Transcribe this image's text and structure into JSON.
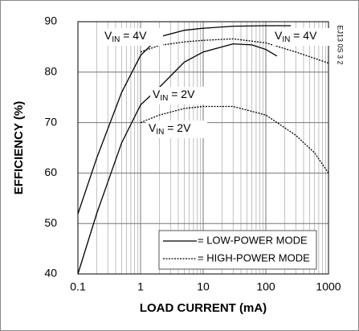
{
  "chart_data": {
    "type": "line",
    "xlabel": "LOAD CURRENT (mA)",
    "ylabel": "EFFICIENCY (%)",
    "figure_code": "EJ13 0S 3 2",
    "xscale": "log",
    "xlim": [
      0.1,
      1000
    ],
    "xticks": [
      0.1,
      1,
      10,
      100,
      1000
    ],
    "ylim": [
      40,
      90
    ],
    "yticks": [
      40,
      50,
      60,
      70,
      80,
      90
    ],
    "grid": true,
    "color": "#000000",
    "series": [
      {
        "name": "= LOW-POWER MODE",
        "dash": "solid",
        "curves": [
          {
            "x": [
              0.1,
              0.2,
              0.5,
              1,
              2,
              5,
              10,
              30,
              100,
              250
            ],
            "values": [
              51.9,
              63,
              76,
              83.3,
              87,
              88.3,
              88.7,
              89.1,
              89.2,
              89.2
            ]
          },
          {
            "x": [
              0.1,
              0.2,
              0.5,
              1,
              2,
              5,
              10,
              30,
              60,
              100,
              150
            ],
            "values": [
              40,
              52,
              66,
              73.5,
              77,
              82,
              84,
              85.6,
              85.4,
              84.5,
              83.2
            ]
          }
        ]
      },
      {
        "name": "= HIGH-POWER MODE",
        "dash": "dotted",
        "curves": [
          {
            "x": [
              1,
              2,
              5,
              10,
              30,
              100,
              300,
              1000
            ],
            "values": [
              84,
              85.3,
              86,
              86.3,
              86.6,
              85.8,
              84,
              81.8
            ]
          },
          {
            "x": [
              1,
              2,
              5,
              10,
              30,
              100,
              300,
              600,
              1000
            ],
            "values": [
              70,
              71.5,
              72.8,
              73.2,
              73.2,
              71.5,
              67.5,
              64,
              60
            ]
          }
        ]
      }
    ],
    "annotations": [
      {
        "text": "V",
        "subscript": "IN",
        "suffix": " = 4V"
      },
      {
        "text": "V",
        "subscript": "IN",
        "suffix": " = 4V"
      },
      {
        "text": "V",
        "subscript": "IN",
        "suffix": " = 2V"
      },
      {
        "text": "V",
        "subscript": "IN",
        "suffix": " = 2V"
      }
    ]
  }
}
